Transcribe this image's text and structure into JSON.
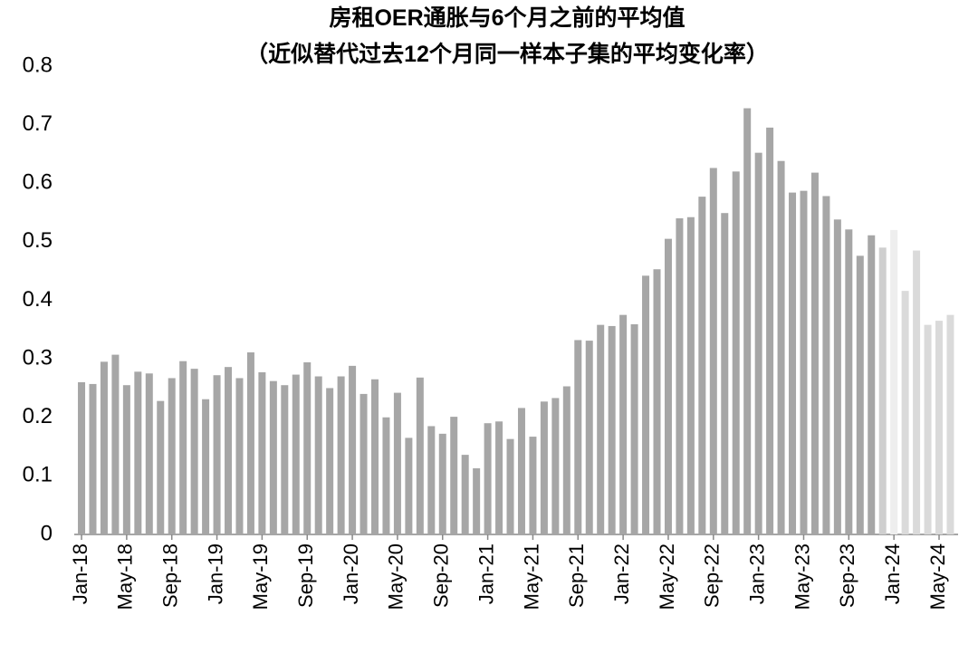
{
  "chart_data": {
    "type": "bar",
    "title": "房租OER通胀与6个月之前的平均值",
    "subtitle": "（近似替代过去12个月同一样本子集的平均变化率）",
    "categories": [
      "Jan-18",
      null,
      null,
      null,
      "May-18",
      null,
      null,
      null,
      "Sep-18",
      null,
      null,
      null,
      "Jan-19",
      null,
      null,
      null,
      "May-19",
      null,
      null,
      null,
      "Sep-19",
      null,
      null,
      null,
      "Jan-20",
      null,
      null,
      null,
      "May-20",
      null,
      null,
      null,
      "Sep-20",
      null,
      null,
      null,
      "Jan-21",
      null,
      null,
      null,
      "May-21",
      null,
      null,
      null,
      "Sep-21",
      null,
      null,
      null,
      "Jan-22",
      null,
      null,
      null,
      "May-22",
      null,
      null,
      null,
      "Sep-22",
      null,
      null,
      null,
      "Jan-23",
      null,
      null,
      null,
      "May-23",
      null,
      null,
      null,
      "Sep-23",
      null,
      null,
      null,
      "Jan-24",
      null,
      null,
      null,
      "May-24",
      null
    ],
    "values": [
      0.26,
      0.257,
      0.295,
      0.307,
      0.255,
      0.278,
      0.275,
      0.228,
      0.267,
      0.296,
      0.283,
      0.231,
      0.272,
      0.286,
      0.267,
      0.311,
      0.277,
      0.262,
      0.255,
      0.273,
      0.294,
      0.27,
      0.25,
      0.27,
      0.288,
      0.24,
      0.265,
      0.2,
      0.242,
      0.165,
      0.268,
      0.185,
      0.172,
      0.201,
      0.136,
      0.113,
      0.19,
      0.193,
      0.163,
      0.216,
      0.167,
      0.227,
      0.233,
      0.253,
      0.332,
      0.331,
      0.358,
      0.356,
      0.375,
      0.359,
      0.442,
      0.453,
      0.505,
      0.54,
      0.542,
      0.577,
      0.626,
      0.549,
      0.62,
      0.728,
      0.652,
      0.695,
      0.638,
      0.584,
      0.587,
      0.618,
      0.578,
      0.538,
      0.521,
      0.476,
      0.511,
      0.49,
      0.52,
      0.416,
      0.485,
      0.358,
      0.365,
      0.375
    ],
    "colors": [
      "#a6a6a6",
      "#a6a6a6",
      "#a6a6a6",
      "#a6a6a6",
      "#a6a6a6",
      "#a6a6a6",
      "#a6a6a6",
      "#a6a6a6",
      "#a6a6a6",
      "#a6a6a6",
      "#a6a6a6",
      "#a6a6a6",
      "#a6a6a6",
      "#a6a6a6",
      "#a6a6a6",
      "#a6a6a6",
      "#a6a6a6",
      "#a6a6a6",
      "#a6a6a6",
      "#a6a6a6",
      "#a6a6a6",
      "#a6a6a6",
      "#a6a6a6",
      "#a6a6a6",
      "#a6a6a6",
      "#a6a6a6",
      "#a6a6a6",
      "#a6a6a6",
      "#a6a6a6",
      "#a6a6a6",
      "#a6a6a6",
      "#a6a6a6",
      "#a6a6a6",
      "#a6a6a6",
      "#a6a6a6",
      "#a6a6a6",
      "#a6a6a6",
      "#a6a6a6",
      "#a6a6a6",
      "#a6a6a6",
      "#a6a6a6",
      "#a6a6a6",
      "#a6a6a6",
      "#a6a6a6",
      "#a6a6a6",
      "#a6a6a6",
      "#a6a6a6",
      "#a6a6a6",
      "#a6a6a6",
      "#a6a6a6",
      "#a6a6a6",
      "#a6a6a6",
      "#a6a6a6",
      "#a6a6a6",
      "#a6a6a6",
      "#a6a6a6",
      "#a6a6a6",
      "#a6a6a6",
      "#a6a6a6",
      "#a6a6a6",
      "#a6a6a6",
      "#a6a6a6",
      "#a6a6a6",
      "#a6a6a6",
      "#a6a6a6",
      "#a6a6a6",
      "#a6a6a6",
      "#a6a6a6",
      "#a6a6a6",
      "#a6a6a6",
      "#a6a6a6",
      "#cfcfcf",
      "#eeeeee",
      "#dadada",
      "#dadada",
      "#dadada",
      "#dadada",
      "#dadada"
    ],
    "ylim": [
      0,
      0.8
    ],
    "yticks": [
      0,
      0.1,
      0.2,
      0.3,
      0.4,
      0.5,
      0.6,
      0.7,
      0.8
    ]
  }
}
